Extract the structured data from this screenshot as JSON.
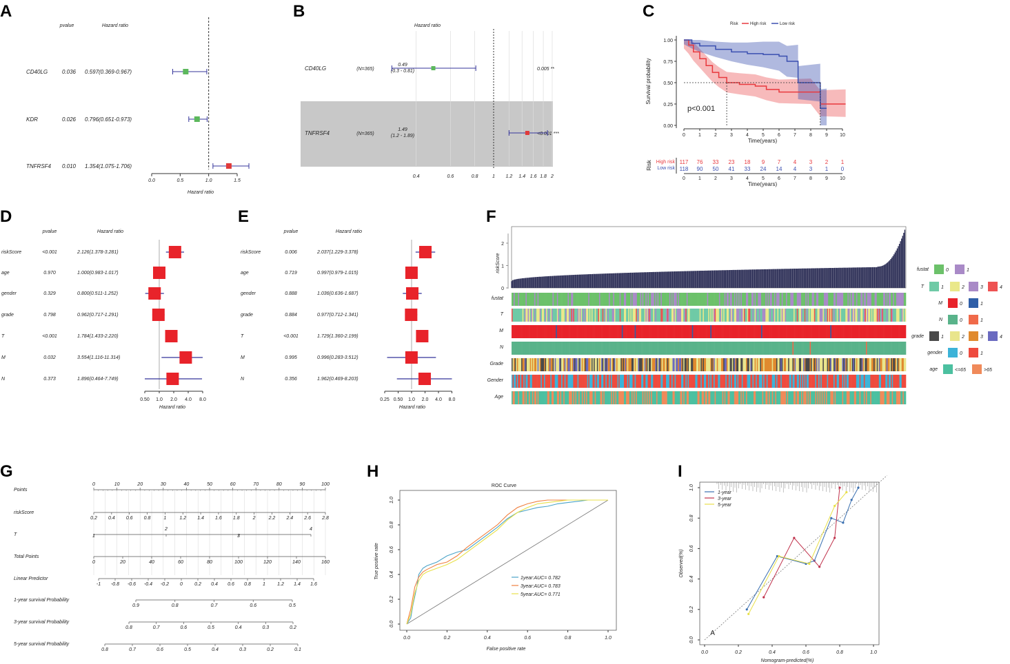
{
  "panel_letters": [
    "A",
    "B",
    "C",
    "D",
    "E",
    "F",
    "G",
    "H",
    "I"
  ],
  "colors": {
    "green": "#5cb85c",
    "red": "#e03a3a",
    "navy": "#33339a",
    "high": "#e8383d",
    "low": "#3a4fb0",
    "bar": "#2b2d55"
  },
  "chart_data": [
    {
      "panel": "A",
      "type": "forest",
      "headers": {
        "pvalue": "pvalue",
        "hr": "Hazard ratio"
      },
      "xlabel": "Hazard ratio",
      "xticks": [
        "0.0",
        "0.5",
        "1.0",
        "1.5"
      ],
      "xtick_values": [
        0,
        0.5,
        1.0,
        1.5
      ],
      "xlim": [
        0,
        1.6
      ],
      "ref": 1,
      "rows": [
        {
          "name": "CD40LG",
          "p": "0.036",
          "text": "0.597(0.369-0.967)",
          "hr": 0.597,
          "lo": 0.369,
          "hi": 0.967,
          "color": "green"
        },
        {
          "name": "KDR",
          "p": "0.026",
          "text": "0.796(0.651-0.973)",
          "hr": 0.796,
          "lo": 0.651,
          "hi": 0.973,
          "color": "green"
        },
        {
          "name": "TNFRSF4",
          "p": "0.010",
          "text": "1.354(1.075-1.706)",
          "hr": 1.354,
          "lo": 1.075,
          "hi": 1.706,
          "color": "red"
        }
      ]
    },
    {
      "panel": "B",
      "type": "forest",
      "title": "Hazard ratio",
      "xticks": [
        "0.4",
        "0.6",
        "0.8",
        "1",
        "1.2",
        "1.4",
        "1.6",
        "1.8",
        "2"
      ],
      "xtick_values": [
        0.4,
        0.6,
        0.8,
        1,
        1.2,
        1.4,
        1.6,
        1.8,
        2
      ],
      "rows": [
        {
          "name": "CD40LG",
          "n": "(N=365)",
          "hr_text": "0.49",
          "ci_text": "(0.3 - 0.81)",
          "p": "0.005 **",
          "hr": 0.49,
          "lo": 0.3,
          "hi": 0.81,
          "color": "green"
        },
        {
          "name": "TNFRSF4",
          "n": "(N=365)",
          "hr_text": "1.49",
          "ci_text": "(1.2 - 1.89)",
          "p": "<0.001 ***",
          "hr": 1.49,
          "lo": 1.2,
          "hi": 1.89,
          "color": "red"
        }
      ]
    },
    {
      "panel": "C",
      "type": "survival",
      "legend_title": "Risk",
      "legend": [
        "High risk",
        "Low risk"
      ],
      "ylabel": "Survival probability",
      "xlabel": "Time(years)",
      "yticks": [
        "0.00",
        "0.25",
        "0.50",
        "0.75",
        "1.00"
      ],
      "xticks": [
        "0",
        "1",
        "2",
        "3",
        "4",
        "5",
        "6",
        "7",
        "8",
        "9",
        "10"
      ],
      "pvalue": "p<0.001",
      "median_high": 2.7,
      "median_low": 8.6,
      "high_curve": [
        [
          0,
          1
        ],
        [
          0.3,
          0.94
        ],
        [
          0.6,
          0.86
        ],
        [
          1,
          0.78
        ],
        [
          1.4,
          0.7
        ],
        [
          1.8,
          0.62
        ],
        [
          2.2,
          0.56
        ],
        [
          2.7,
          0.5
        ],
        [
          3.5,
          0.48
        ],
        [
          4.5,
          0.46
        ],
        [
          5.2,
          0.42
        ],
        [
          6,
          0.39
        ],
        [
          7,
          0.39
        ],
        [
          8,
          0.39
        ],
        [
          8.6,
          0.25
        ],
        [
          10,
          0.25
        ],
        [
          10.2,
          0.25
        ]
      ],
      "low_curve": [
        [
          0,
          1
        ],
        [
          0.5,
          0.96
        ],
        [
          1,
          0.93
        ],
        [
          2,
          0.89
        ],
        [
          3,
          0.86
        ],
        [
          4,
          0.84
        ],
        [
          5,
          0.83
        ],
        [
          6,
          0.81
        ],
        [
          6.5,
          0.75
        ],
        [
          7.2,
          0.75
        ],
        [
          7.2,
          0.5
        ],
        [
          8.6,
          0.5
        ],
        [
          8.6,
          0.2
        ],
        [
          9,
          0.2
        ]
      ],
      "risk_table_title": "Risk",
      "risk_labels": [
        "High risk",
        "Low risk"
      ],
      "high_counts": [
        "117",
        "76",
        "33",
        "23",
        "18",
        "9",
        "7",
        "4",
        "3",
        "2",
        "1"
      ],
      "low_counts": [
        "118",
        "90",
        "50",
        "41",
        "33",
        "24",
        "14",
        "4",
        "3",
        "1",
        "0"
      ]
    },
    {
      "panel": "D",
      "type": "forest",
      "headers": {
        "pvalue": "pvalue",
        "hr": "Hazard ratio"
      },
      "xlabel": "Hazard ratio",
      "xticks": [
        "0.50",
        "1.0",
        "2.0",
        "4.0",
        "8.0"
      ],
      "xtick_values": [
        0.5,
        1,
        2,
        4,
        8
      ],
      "rows": [
        {
          "name": "riskScore",
          "p": "<0.001",
          "text": "2.126(1.378-3.281)",
          "hr": 2.126,
          "lo": 1.378,
          "hi": 3.281
        },
        {
          "name": "age",
          "p": "0.970",
          "text": "1.000(0.983-1.017)",
          "hr": 1.0,
          "lo": 0.983,
          "hi": 1.017
        },
        {
          "name": "gender",
          "p": "0.329",
          "text": "0.800(0.511-1.252)",
          "hr": 0.8,
          "lo": 0.511,
          "hi": 1.252
        },
        {
          "name": "grade",
          "p": "0.798",
          "text": "0.962(0.717-1.291)",
          "hr": 0.962,
          "lo": 0.717,
          "hi": 1.291
        },
        {
          "name": "T",
          "p": "<0.001",
          "text": "1.784(1.433-2.220)",
          "hr": 1.784,
          "lo": 1.433,
          "hi": 2.22
        },
        {
          "name": "M",
          "p": "0.032",
          "text": "3.554(1.116-11.314)",
          "hr": 3.554,
          "lo": 1.116,
          "hi": 11.314
        },
        {
          "name": "N",
          "p": "0.373",
          "text": "1.896(0.464-7.749)",
          "hr": 1.896,
          "lo": 0.464,
          "hi": 7.749
        }
      ]
    },
    {
      "panel": "E",
      "type": "forest",
      "headers": {
        "pvalue": "pvalue",
        "hr": "Hazard ratio"
      },
      "xlabel": "Hazard ratio",
      "xticks": [
        "0.25",
        "0.50",
        "1.0",
        "2.0",
        "4.0",
        "8.0"
      ],
      "xtick_values": [
        0.25,
        0.5,
        1,
        2,
        4,
        8
      ],
      "rows": [
        {
          "name": "riskScore",
          "p": "0.006",
          "text": "2.037(1.229-3.378)",
          "hr": 2.037,
          "lo": 1.229,
          "hi": 3.378
        },
        {
          "name": "age",
          "p": "0.719",
          "text": "0.997(0.979-1.015)",
          "hr": 0.997,
          "lo": 0.979,
          "hi": 1.015
        },
        {
          "name": "gender",
          "p": "0.888",
          "text": "1.036(0.636-1.687)",
          "hr": 1.036,
          "lo": 0.636,
          "hi": 1.687
        },
        {
          "name": "grade",
          "p": "0.884",
          "text": "0.977(0.712-1.341)",
          "hr": 0.977,
          "lo": 0.712,
          "hi": 1.341
        },
        {
          "name": "T",
          "p": "<0.001",
          "text": "1.729(1.360-2.199)",
          "hr": 1.729,
          "lo": 1.36,
          "hi": 2.199
        },
        {
          "name": "M",
          "p": "0.995",
          "text": "0.996(0.283-3.512)",
          "hr": 0.996,
          "lo": 0.283,
          "hi": 3.512
        },
        {
          "name": "N",
          "p": "0.356",
          "text": "1.962(0.469-8.203)",
          "hr": 1.962,
          "lo": 0.469,
          "hi": 8.203
        }
      ]
    },
    {
      "panel": "F",
      "type": "heatmap",
      "ylabel": "riskScore",
      "yticks": [
        "0",
        "1",
        "2"
      ],
      "ylim": [
        0,
        2.6
      ],
      "n_patients": 365,
      "score_start": 0.3,
      "score_mid": 0.95,
      "score_end": 2.6,
      "tracks": [
        "fustat",
        "T",
        "M",
        "N",
        "Grade",
        "Gender",
        "Age"
      ],
      "legend": [
        {
          "title": "fustat",
          "items": [
            {
              "label": "0",
              "color": "#6cc16a"
            },
            {
              "label": "1",
              "color": "#a98ac7"
            }
          ]
        },
        {
          "title": "T",
          "items": [
            {
              "label": "1",
              "color": "#6fcaa6"
            },
            {
              "label": "2",
              "color": "#eae88a"
            },
            {
              "label": "3",
              "color": "#a98ac7"
            },
            {
              "label": "4",
              "color": "#ee5252"
            }
          ]
        },
        {
          "title": "M",
          "items": [
            {
              "label": "0",
              "color": "#e8232a"
            },
            {
              "label": "1",
              "color": "#2f5fa8"
            }
          ]
        },
        {
          "title": "N",
          "items": [
            {
              "label": "0",
              "color": "#59b38a"
            },
            {
              "label": "1",
              "color": "#f06a4a"
            }
          ]
        },
        {
          "title": "grade",
          "items": [
            {
              "label": "1",
              "color": "#4a4a4a"
            },
            {
              "label": "2",
              "color": "#e9e58c"
            },
            {
              "label": "3",
              "color": "#e08a2e"
            },
            {
              "label": "4",
              "color": "#6a6ac0"
            }
          ]
        },
        {
          "title": "gender",
          "items": [
            {
              "label": "0",
              "color": "#3cb3d8"
            },
            {
              "label": "1",
              "color": "#ee4b3e"
            }
          ]
        },
        {
          "title": "age",
          "items": [
            {
              "label": "<=65",
              "color": "#4cc0a0"
            },
            {
              "label": ">65",
              "color": "#f08a5a"
            }
          ]
        }
      ]
    },
    {
      "panel": "G",
      "type": "nomogram",
      "rows": [
        {
          "label": "Points",
          "ticks": [
            "0",
            "10",
            "20",
            "30",
            "40",
            "50",
            "60",
            "70",
            "80",
            "90",
            "100"
          ],
          "labels_above": true
        },
        {
          "label": "riskScore",
          "ticks": [
            "0.2",
            "0.4",
            "0.6",
            "0.8",
            "1",
            "1.2",
            "1.4",
            "1.6",
            "1.8",
            "2",
            "2.2",
            "2.4",
            "2.6",
            "2.8"
          ]
        },
        {
          "label": "T",
          "ticks": [
            "1",
            "2",
            "3",
            "4"
          ]
        },
        {
          "label": "Total Points",
          "ticks": [
            "0",
            "20",
            "40",
            "60",
            "80",
            "100",
            "120",
            "140",
            "160"
          ]
        },
        {
          "label": "Linear Predictor",
          "ticks": [
            "-1",
            "-0.8",
            "-0.6",
            "-0.4",
            "-0.2",
            "0",
            "0.2",
            "0.4",
            "0.6",
            "0.8",
            "1",
            "1.2",
            "1.4",
            "1.6"
          ]
        },
        {
          "label": "1-year survival Probability",
          "ticks": [
            "0.9",
            "0.8",
            "0.7",
            "0.6",
            "0.5"
          ]
        },
        {
          "label": "3-year survival Probability",
          "ticks": [
            "0.8",
            "0.7",
            "0.6",
            "0.5",
            "0.4",
            "0.3",
            "0.2"
          ]
        },
        {
          "label": "5-year survival Probability",
          "ticks": [
            "0.8",
            "0.7",
            "0.6",
            "0.5",
            "0.4",
            "0.3",
            "0.2",
            "0.1"
          ]
        }
      ]
    },
    {
      "panel": "H",
      "type": "line",
      "title": "ROC Curve",
      "xlabel": "False positive rate",
      "ylabel": "True positive rate",
      "xticks": [
        "0.0",
        "0.2",
        "0.4",
        "0.6",
        "0.8",
        "1.0"
      ],
      "yticks": [
        "0.0",
        "0.2",
        "0.4",
        "0.6",
        "0.8",
        "1.0"
      ],
      "series": [
        {
          "name": "1year:AUC= 0.782",
          "color": "#4aa3c8",
          "x": [
            0,
            0.02,
            0.03,
            0.05,
            0.06,
            0.08,
            0.1,
            0.15,
            0.2,
            0.25,
            0.3,
            0.35,
            0.4,
            0.45,
            0.5,
            0.55,
            0.6,
            0.65,
            0.7,
            0.75,
            0.8,
            0.85,
            0.9,
            0.95,
            1
          ],
          "y": [
            0,
            0.05,
            0.15,
            0.3,
            0.4,
            0.45,
            0.47,
            0.5,
            0.55,
            0.58,
            0.6,
            0.66,
            0.72,
            0.78,
            0.85,
            0.9,
            0.92,
            0.94,
            0.95,
            0.97,
            0.98,
            0.99,
            1,
            1,
            1
          ]
        },
        {
          "name": "3year:AUC= 0.783",
          "color": "#f08040",
          "x": [
            0,
            0.02,
            0.04,
            0.06,
            0.08,
            0.1,
            0.15,
            0.2,
            0.25,
            0.3,
            0.35,
            0.4,
            0.45,
            0.5,
            0.55,
            0.6,
            0.65,
            0.7,
            0.75,
            0.8,
            0.85,
            0.9,
            0.95,
            1
          ],
          "y": [
            0,
            0.12,
            0.3,
            0.38,
            0.42,
            0.44,
            0.48,
            0.5,
            0.55,
            0.62,
            0.68,
            0.74,
            0.8,
            0.88,
            0.94,
            0.97,
            0.99,
            1,
            1,
            1,
            1,
            1,
            1,
            1
          ]
        },
        {
          "name": "5year:AUC= 0.771",
          "color": "#e8e048",
          "x": [
            0,
            0.02,
            0.04,
            0.06,
            0.08,
            0.1,
            0.15,
            0.2,
            0.25,
            0.3,
            0.35,
            0.4,
            0.45,
            0.5,
            0.55,
            0.6,
            0.65,
            0.7,
            0.75,
            0.8,
            0.85,
            0.9,
            0.95,
            1
          ],
          "y": [
            0,
            0.08,
            0.25,
            0.35,
            0.4,
            0.42,
            0.45,
            0.48,
            0.52,
            0.58,
            0.64,
            0.7,
            0.76,
            0.84,
            0.9,
            0.94,
            0.97,
            0.98,
            0.99,
            1,
            1,
            1,
            1,
            1
          ]
        }
      ]
    },
    {
      "panel": "I",
      "type": "line",
      "xlabel": "Nomogram-predicted(%)",
      "ylabel": "Observed(%)",
      "xticks": [
        "0.0",
        "0.2",
        "0.4",
        "0.6",
        "0.8",
        "1.0"
      ],
      "yticks": [
        "0.0",
        "0.2",
        "0.4",
        "0.6",
        "0.8",
        "1.0"
      ],
      "marker_text": "A",
      "series": [
        {
          "name": "1-year",
          "color": "#3a6fb0",
          "x": [
            0.25,
            0.43,
            0.6,
            0.65,
            0.75,
            0.82,
            0.87,
            0.91
          ],
          "y": [
            0.2,
            0.55,
            0.5,
            0.52,
            0.8,
            0.77,
            0.92,
            1.0
          ]
        },
        {
          "name": "3-year",
          "color": "#c0304a",
          "x": [
            0.35,
            0.53,
            0.68,
            0.77,
            0.8
          ],
          "y": [
            0.28,
            0.67,
            0.48,
            0.67,
            1.0
          ]
        },
        {
          "name": "5-year",
          "color": "#e8e048",
          "x": [
            0.26,
            0.44,
            0.62,
            0.77,
            0.84
          ],
          "y": [
            0.17,
            0.55,
            0.5,
            0.88,
            0.97
          ]
        }
      ]
    }
  ]
}
